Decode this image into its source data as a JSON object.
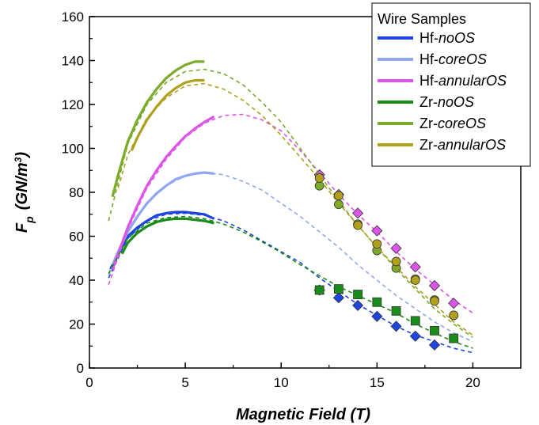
{
  "chart_data": {
    "type": "scatter",
    "title": "",
    "xlabel": "Magnetic Field (T)",
    "ylabel_main": "F",
    "ylabel_sub": "p",
    "ylabel_unit_pre": "(GN/m",
    "ylabel_unit_sup": "3",
    "ylabel_unit_post": ")",
    "xlim": [
      0,
      22.5
    ],
    "ylim": [
      0,
      160
    ],
    "x_ticks": [
      0,
      5,
      10,
      15,
      20
    ],
    "x_tick_labels": [
      "0",
      "5",
      "10",
      "15",
      "20"
    ],
    "y_ticks": [
      0,
      20,
      40,
      60,
      80,
      100,
      120,
      140,
      160
    ],
    "y_tick_labels": [
      "0",
      "20",
      "40",
      "60",
      "80",
      "100",
      "120",
      "140",
      "160"
    ],
    "grid": false,
    "legend": {
      "title": "Wire Samples",
      "placement": "top-right",
      "entries": [
        {
          "prefix": "Hf-",
          "suffix": "noOS"
        },
        {
          "prefix": "Hf-",
          "suffix": "coreOS"
        },
        {
          "prefix": "Hf-",
          "suffix": "annularOS"
        },
        {
          "prefix": "Zr-",
          "suffix": "noOS"
        },
        {
          "prefix": "Zr-",
          "suffix": "coreOS"
        },
        {
          "prefix": "Zr-",
          "suffix": "annularOS"
        }
      ]
    },
    "series": [
      {
        "name": "Hf-noOS",
        "color": "#1f45e0",
        "marker": "diamond",
        "measured": {
          "x": [
            1.1,
            1.5,
            2.0,
            2.5,
            3.0,
            3.5,
            4.0,
            4.5,
            5.0,
            5.5,
            6.0,
            6.5
          ],
          "y": [
            45,
            52,
            60,
            64,
            67,
            69.5,
            70.5,
            71,
            71,
            70.5,
            70,
            68
          ]
        },
        "fit": {
          "x": [
            1.0,
            2,
            3,
            4,
            5,
            6,
            7,
            8,
            9,
            10,
            11,
            12,
            13,
            14,
            15,
            16,
            17,
            18,
            19,
            20
          ],
          "y": [
            41,
            59,
            67,
            70,
            70.5,
            69.5,
            67,
            63,
            58,
            53,
            48,
            41,
            35,
            29,
            24,
            19,
            15,
            12,
            9,
            7
          ]
        },
        "points": {
          "x": [
            12,
            13,
            14,
            15,
            16,
            17,
            18
          ],
          "y": [
            35.5,
            32,
            28.5,
            23.5,
            19,
            14.5,
            10.5
          ]
        }
      },
      {
        "name": "Hf-coreOS",
        "color": "#8fa7f0",
        "marker": "none",
        "measured": {
          "x": [
            1.2,
            1.5,
            2.0,
            2.5,
            3.0,
            3.5,
            4.0,
            4.5,
            5.0,
            5.5,
            6.0,
            6.5
          ],
          "y": [
            47,
            53,
            62,
            69,
            75,
            79.5,
            83,
            86,
            87.5,
            88.5,
            89,
            88.5
          ]
        },
        "fit": {
          "x": [
            1.0,
            2,
            3,
            4,
            5,
            6,
            7,
            8,
            9,
            10,
            11,
            12,
            13,
            14,
            15,
            16,
            17,
            18,
            19,
            20
          ],
          "y": [
            42,
            62,
            75,
            83,
            87.5,
            89,
            88,
            85,
            81,
            75,
            69,
            62,
            55,
            47,
            40,
            33,
            27,
            21,
            16,
            12
          ]
        },
        "points": {
          "x": [],
          "y": []
        }
      },
      {
        "name": "Hf-annularOS",
        "color": "#dd55e8",
        "marker": "diamond",
        "measured": {
          "x": [
            1.2,
            1.5,
            2.0,
            2.5,
            3.0,
            3.5,
            4.0,
            4.5,
            5.0,
            5.5,
            6.0,
            6.5
          ],
          "y": [
            45,
            52,
            64,
            74,
            83,
            90,
            96,
            101,
            105.5,
            109,
            112,
            114.5
          ]
        },
        "fit": {
          "x": [
            1.0,
            2,
            3,
            4,
            5,
            6,
            7,
            8,
            9,
            10,
            11,
            12,
            13,
            14,
            15,
            16,
            17,
            18,
            19,
            20
          ],
          "y": [
            38,
            63,
            82,
            95,
            105,
            111.5,
            115,
            115.5,
            113,
            108,
            99,
            89,
            79,
            70,
            62,
            53,
            45,
            38,
            31,
            25
          ]
        },
        "points": {
          "x": [
            12,
            13,
            14,
            15,
            16,
            17,
            18,
            19
          ],
          "y": [
            88,
            79,
            70.5,
            62.5,
            54.5,
            46,
            37.5,
            29.5
          ]
        }
      },
      {
        "name": "Zr-noOS",
        "color": "#1a8c1a",
        "marker": "square",
        "measured": {
          "x": [
            1.7,
            2.0,
            2.5,
            3.0,
            3.5,
            4.0,
            4.5,
            5.0,
            5.5,
            6.0,
            6.5
          ],
          "y": [
            52,
            57,
            61.5,
            64.5,
            66.5,
            67.5,
            68,
            68,
            67.5,
            67,
            66
          ]
        },
        "fit": {
          "x": [
            1.0,
            2,
            3,
            4,
            5,
            6,
            7,
            8,
            9,
            10,
            11,
            12,
            13,
            14,
            15,
            16,
            17,
            18,
            19,
            20
          ],
          "y": [
            43,
            59,
            66,
            68.5,
            69,
            68,
            65.5,
            62,
            57.5,
            52.5,
            47,
            42,
            37,
            33,
            29,
            25,
            20,
            16,
            12,
            9
          ]
        },
        "points": {
          "x": [
            12,
            13,
            14,
            15,
            16,
            17,
            18,
            19
          ],
          "y": [
            35.5,
            36,
            33.5,
            30,
            26,
            21.5,
            17,
            13.5
          ]
        }
      },
      {
        "name": "Zr-coreOS",
        "color": "#7aab2a",
        "marker": "circle",
        "measured": {
          "x": [
            1.2,
            1.5,
            2.0,
            2.5,
            3.0,
            3.5,
            4.0,
            4.5,
            5.0,
            5.5,
            6.0
          ],
          "y": [
            78,
            88,
            103,
            113,
            121,
            127,
            132,
            135.5,
            138,
            139.5,
            139.5
          ]
        },
        "fit": {
          "x": [
            1.0,
            2,
            3,
            4,
            5,
            6,
            7,
            8,
            9,
            10,
            11,
            12,
            13,
            14,
            15,
            16,
            17,
            18,
            19,
            20
          ],
          "y": [
            67,
            102,
            120,
            130,
            135,
            136,
            134,
            129,
            121,
            112,
            100,
            88,
            76,
            65,
            55,
            45,
            36,
            27,
            20,
            14
          ]
        },
        "points": {
          "x": [
            12,
            13,
            14,
            15,
            16,
            17,
            18,
            19
          ],
          "y": [
            83,
            74.5,
            65.5,
            53.5,
            45.5,
            40.5,
            31,
            24
          ]
        }
      },
      {
        "name": "Zr-annularOS",
        "color": "#b0a01e",
        "marker": "circle",
        "measured": {
          "x": [
            2.2,
            2.5,
            3.0,
            3.5,
            4.0,
            4.5,
            5.0,
            5.5,
            6.0
          ],
          "y": [
            99,
            105,
            113,
            119,
            124,
            127.5,
            130,
            131,
            131
          ]
        },
        "fit": {
          "x": [
            1.5,
            2,
            3,
            4,
            5,
            6,
            7,
            8,
            9,
            10,
            11,
            12,
            13,
            14,
            15,
            16,
            17,
            18,
            19,
            20
          ],
          "y": [
            82,
            97,
            114,
            123,
            128.5,
            129.5,
            127,
            122,
            115,
            106,
            96,
            86,
            75,
            65,
            55,
            46,
            37,
            29,
            21,
            15
          ]
        },
        "points": {
          "x": [
            12,
            13,
            14,
            15,
            16,
            17,
            18,
            19
          ],
          "y": [
            86.5,
            78.5,
            65,
            56.5,
            48.5,
            40,
            30.5,
            24
          ]
        }
      }
    ]
  }
}
